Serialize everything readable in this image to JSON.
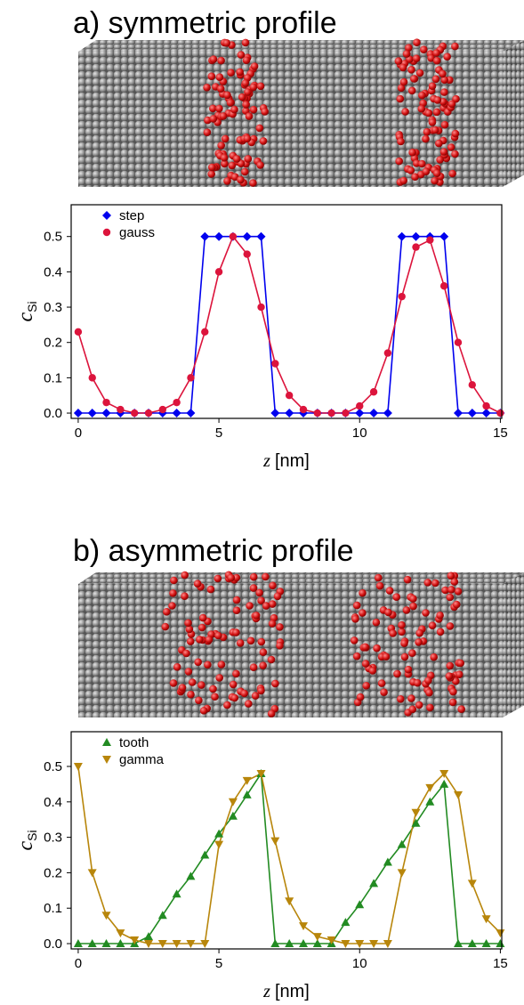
{
  "chart_data": [
    {
      "type": "line",
      "title": "a) symmetric profile",
      "xlabel_symbol": "z",
      "xlabel_unit": "[nm]",
      "ylabel": "c",
      "ylabel_subscript": "Si",
      "xlim": [
        -0.25,
        15.05
      ],
      "ylim": [
        -0.015,
        0.59
      ],
      "xticks": [
        0,
        5,
        10,
        15
      ],
      "yticks": [
        {
          "value": 0,
          "label": "0.0"
        },
        0.1,
        0.2,
        0.3,
        0.4,
        0.5
      ],
      "legend": "upper left",
      "x": [
        0,
        0.5,
        1,
        1.5,
        2,
        2.5,
        3,
        3.5,
        4,
        4.5,
        5,
        5.5,
        6,
        6.5,
        7,
        7.5,
        8,
        8.5,
        9,
        9.5,
        10,
        10.5,
        11,
        11.5,
        12,
        12.5,
        13,
        13.5,
        14,
        14.5,
        15
      ],
      "series": [
        {
          "name": "step",
          "color": "#0000ee",
          "marker": "diamond",
          "values": [
            0,
            0,
            0,
            0,
            0,
            0,
            0,
            0,
            0,
            0.5,
            0.5,
            0.5,
            0.5,
            0.5,
            0,
            0,
            0,
            0,
            0,
            0,
            0,
            0,
            0,
            0.5,
            0.5,
            0.5,
            0.5,
            0,
            0,
            0,
            0
          ]
        },
        {
          "name": "gauss",
          "color": "#dc143c",
          "marker": "circle",
          "values": [
            0.23,
            0.1,
            0.03,
            0.01,
            0,
            0,
            0.01,
            0.03,
            0.1,
            0.23,
            0.4,
            0.5,
            0.45,
            0.3,
            0.14,
            0.05,
            0.01,
            0,
            0,
            0,
            0.02,
            0.06,
            0.17,
            0.33,
            0.47,
            0.49,
            0.36,
            0.2,
            0.08,
            0.02,
            0
          ]
        }
      ]
    },
    {
      "type": "line",
      "title": "b) asymmetric profile",
      "xlabel_symbol": "z",
      "xlabel_unit": "[nm]",
      "ylabel": "c",
      "ylabel_subscript": "Si",
      "xlim": [
        -0.25,
        15.05
      ],
      "ylim": [
        -0.015,
        0.598
      ],
      "xticks": [
        0,
        5,
        10,
        15
      ],
      "yticks": [
        {
          "value": 0,
          "label": "0.0"
        },
        0.1,
        0.2,
        0.3,
        0.4,
        0.5
      ],
      "legend": "upper left",
      "x": [
        0,
        0.5,
        1,
        1.5,
        2,
        2.5,
        3,
        3.5,
        4,
        4.5,
        5,
        5.5,
        6,
        6.5,
        7,
        7.5,
        8,
        8.5,
        9,
        9.5,
        10,
        10.5,
        11,
        11.5,
        12,
        12.5,
        13,
        13.5,
        14,
        14.5,
        15
      ],
      "series": [
        {
          "name": "tooth",
          "color": "#228b22",
          "marker": "triangle-up",
          "values": [
            0,
            0,
            0,
            0,
            0,
            0.02,
            0.08,
            0.14,
            0.19,
            0.25,
            0.31,
            0.36,
            0.42,
            0.48,
            0,
            0,
            0,
            0,
            0,
            0.06,
            0.11,
            0.17,
            0.23,
            0.28,
            0.34,
            0.4,
            0.45,
            0,
            0,
            0,
            0
          ]
        },
        {
          "name": "gamma",
          "color": "#b8860b",
          "marker": "triangle-down",
          "values": [
            0.5,
            0.2,
            0.08,
            0.03,
            0.01,
            0,
            0,
            0,
            0,
            0,
            0.28,
            0.4,
            0.46,
            0.48,
            0.29,
            0.12,
            0.05,
            0.02,
            0.01,
            0,
            0,
            0,
            0,
            0.2,
            0.37,
            0.44,
            0.48,
            0.42,
            0.17,
            0.07,
            0.03
          ]
        }
      ]
    }
  ]
}
